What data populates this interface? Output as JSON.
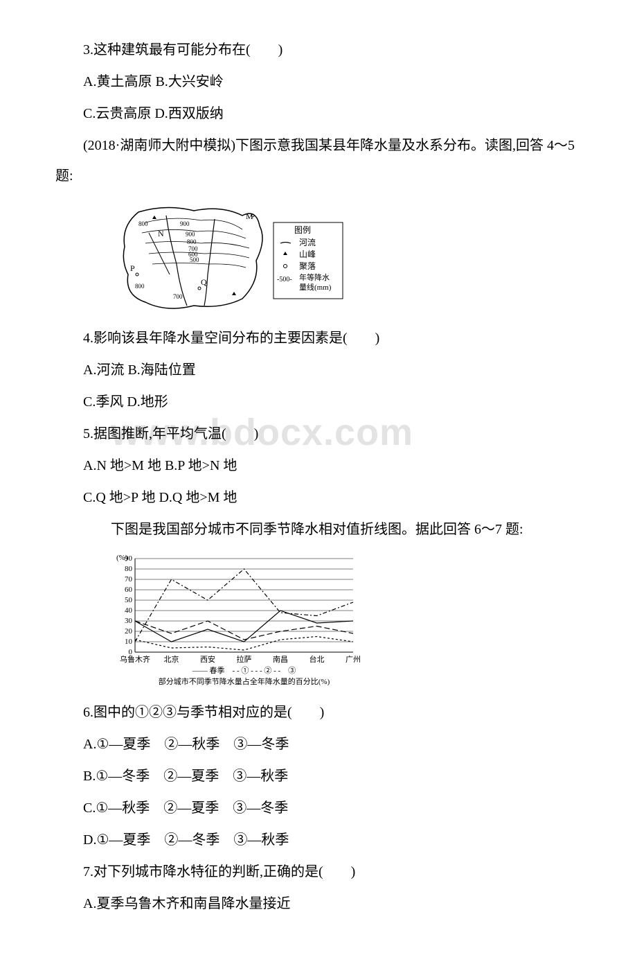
{
  "watermark": "www.bdocx.com",
  "q3": {
    "stem": "3.这种建筑最有可能分布在(　　)",
    "optA": "A.黄土高原 B.大兴安岭",
    "optC": "C.云贵高原 D.西双版纳"
  },
  "intro45": "(2018·湖南师大附中模拟)下图示意我国某县年降水量及水系分布。读图,回答 4～5 题:",
  "map": {
    "legend_title": "图例",
    "legend_river": "河流",
    "legend_peak": "山峰",
    "legend_settlement": "聚落",
    "legend_isoline_val": "-500-",
    "legend_isoline_a": "年等降水",
    "legend_isoline_b": "量线(mm)",
    "labels": {
      "M": "M",
      "N": "N",
      "P": "P",
      "Q": "Q"
    },
    "contours": [
      "500",
      "600",
      "700",
      "800",
      "900",
      "900",
      "800",
      "800",
      "700"
    ],
    "colors": {
      "line": "#000000",
      "bg": "#ffffff"
    }
  },
  "q4": {
    "stem": "4.影响该县年降水量空间分布的主要因素是(　　)",
    "optA": "A.河流 B.海陆位置",
    "optC": "C.季风 D.地形"
  },
  "q5": {
    "stem": "5.据图推断,年平均气温(　　)",
    "optA": "A.N 地>M 地 B.P 地>N 地",
    "optC": "C.Q 地>P 地 D.Q 地>M 地"
  },
  "intro67": "　　下图是我国部分城市不同季节降水相对值折线图。据此回答 6～7 题:",
  "chart": {
    "ylabel": "(%)",
    "y_ticks": [
      0,
      10,
      20,
      30,
      40,
      50,
      60,
      70,
      80,
      90
    ],
    "x_categories": [
      "乌鲁木齐",
      "北京",
      "西安",
      "拉萨",
      "南昌",
      "台北",
      "广州"
    ],
    "series": {
      "spring": {
        "label": "春季",
        "style": "solid",
        "values": [
          30,
          10,
          22,
          10,
          40,
          28,
          30
        ]
      },
      "s1": {
        "label": "①",
        "style": "dash-dot",
        "values": [
          10,
          70,
          50,
          80,
          38,
          35,
          48
        ]
      },
      "s2": {
        "label": "②",
        "style": "long-dash",
        "values": [
          30,
          18,
          30,
          12,
          20,
          25,
          18
        ]
      },
      "s3": {
        "label": "③",
        "style": "short-dash",
        "values": [
          12,
          4,
          5,
          2,
          12,
          15,
          10
        ]
      }
    },
    "legend_line": "—— 春季　- - ① - - - ② - -　③",
    "caption": "部分城市不同季节降水量占全年降水量的百分比(%)",
    "colors": {
      "axis": "#000000",
      "grid": "#000000",
      "line": "#000000",
      "bg": "#ffffff"
    },
    "font_size": 11
  },
  "q6": {
    "stem": "6.图中的①②③与季节相对应的是(　　)",
    "optA": "A.①—夏季　②—秋季　③—冬季",
    "optB": "B.①—冬季　②—夏季　③—秋季",
    "optC": "C.①—秋季　②—夏季　③—冬季",
    "optD": "D.①—夏季　②—冬季　③—秋季"
  },
  "q7": {
    "stem": "7.对下列城市降水特征的判断,正确的是(　　)",
    "optA": "A.夏季乌鲁木齐和南昌降水量接近"
  }
}
